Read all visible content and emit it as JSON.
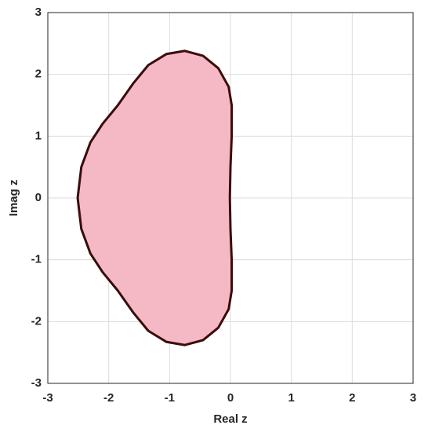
{
  "chart_data": {
    "type": "area",
    "xlabel": "Real z",
    "ylabel": "Imag z",
    "x": [
      -2.51,
      -2.45,
      -2.3,
      -2.1,
      -1.85,
      -1.6,
      -1.35,
      -1.05,
      -0.75,
      -0.45,
      -0.2,
      -0.03,
      0.02,
      0.02,
      0.0,
      -0.01,
      0.0,
      0.02,
      0.02,
      -0.03,
      -0.2,
      -0.45,
      -0.75,
      -1.05,
      -1.35,
      -1.6,
      -1.85,
      -2.1,
      -2.3,
      -2.45
    ],
    "y": [
      0,
      0.5,
      0.9,
      1.2,
      1.5,
      1.85,
      2.15,
      2.33,
      2.38,
      2.3,
      2.1,
      1.8,
      1.5,
      1.0,
      0.5,
      0,
      -0.5,
      -1.0,
      -1.5,
      -1.8,
      -2.1,
      -2.3,
      -2.38,
      -2.33,
      -2.15,
      -1.85,
      -1.5,
      -1.2,
      -0.9,
      -0.5
    ],
    "fill": "#f4b9c5",
    "color": "#3b0c0c",
    "xlim": [
      -3,
      3
    ],
    "ylim": [
      -3,
      3
    ],
    "xticks": [
      -3,
      -2,
      -1,
      0,
      1,
      2,
      3
    ],
    "yticks": [
      -3,
      -2,
      -1,
      0,
      1,
      2,
      3
    ],
    "grid": true
  }
}
